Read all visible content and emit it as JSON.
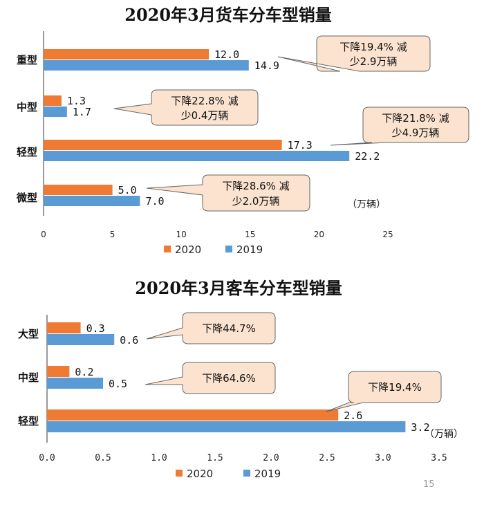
{
  "page_number": "15",
  "colors": {
    "s2020": "#ee7a33",
    "s2019": "#5b9bd5"
  },
  "chart_data": [
    {
      "type": "bar",
      "orientation": "horizontal",
      "title": "2020年3月货车分车型销量",
      "categories": [
        "重型",
        "中型",
        "轻型",
        "微型"
      ],
      "series": [
        {
          "name": "2020",
          "values": [
            12.0,
            1.3,
            17.3,
            5.0
          ],
          "labels": [
            "12.0",
            "1.3",
            "17.3",
            "5.0"
          ]
        },
        {
          "name": "2019",
          "values": [
            14.9,
            1.7,
            22.2,
            7.0
          ],
          "labels": [
            "14.9",
            "1.7",
            "22.2",
            "7.0"
          ]
        }
      ],
      "xlim": [
        0,
        25
      ],
      "ticks": [
        "0",
        "5",
        "10",
        "15",
        "20",
        "25"
      ],
      "unit": "（万辆）",
      "legend": [
        "2020",
        "2019"
      ],
      "annotations": [
        {
          "lines": [
            "下降19.4% 减",
            "少2.9万辆"
          ],
          "category": "重型"
        },
        {
          "lines": [
            "下降22.8% 减",
            "少0.4万辆"
          ],
          "category": "中型"
        },
        {
          "lines": [
            "下降21.8% 减",
            "少4.9万辆"
          ],
          "category": "轻型"
        },
        {
          "lines": [
            "下降28.6% 减",
            "少2.0万辆"
          ],
          "category": "微型"
        }
      ]
    },
    {
      "type": "bar",
      "orientation": "horizontal",
      "title": "2020年3月客车分车型销量",
      "categories": [
        "大型",
        "中型",
        "轻型"
      ],
      "series": [
        {
          "name": "2020",
          "values": [
            0.3,
            0.2,
            2.6
          ],
          "labels": [
            "0.3",
            "0.2",
            "2.6"
          ]
        },
        {
          "name": "2019",
          "values": [
            0.6,
            0.5,
            3.2
          ],
          "labels": [
            "0.6",
            "0.5",
            "3.2"
          ]
        }
      ],
      "xlim": [
        0,
        3.5
      ],
      "ticks": [
        "0.0",
        "0.5",
        "1.0",
        "1.5",
        "2.0",
        "2.5",
        "3.0",
        "3.5"
      ],
      "unit": "（万辆）",
      "legend": [
        "2020",
        "2019"
      ],
      "annotations": [
        {
          "lines": [
            "下降44.7%"
          ],
          "category": "大型"
        },
        {
          "lines": [
            "下降64.6%"
          ],
          "category": "中型"
        },
        {
          "lines": [
            "下降19.4%"
          ],
          "category": "轻型"
        }
      ]
    }
  ]
}
